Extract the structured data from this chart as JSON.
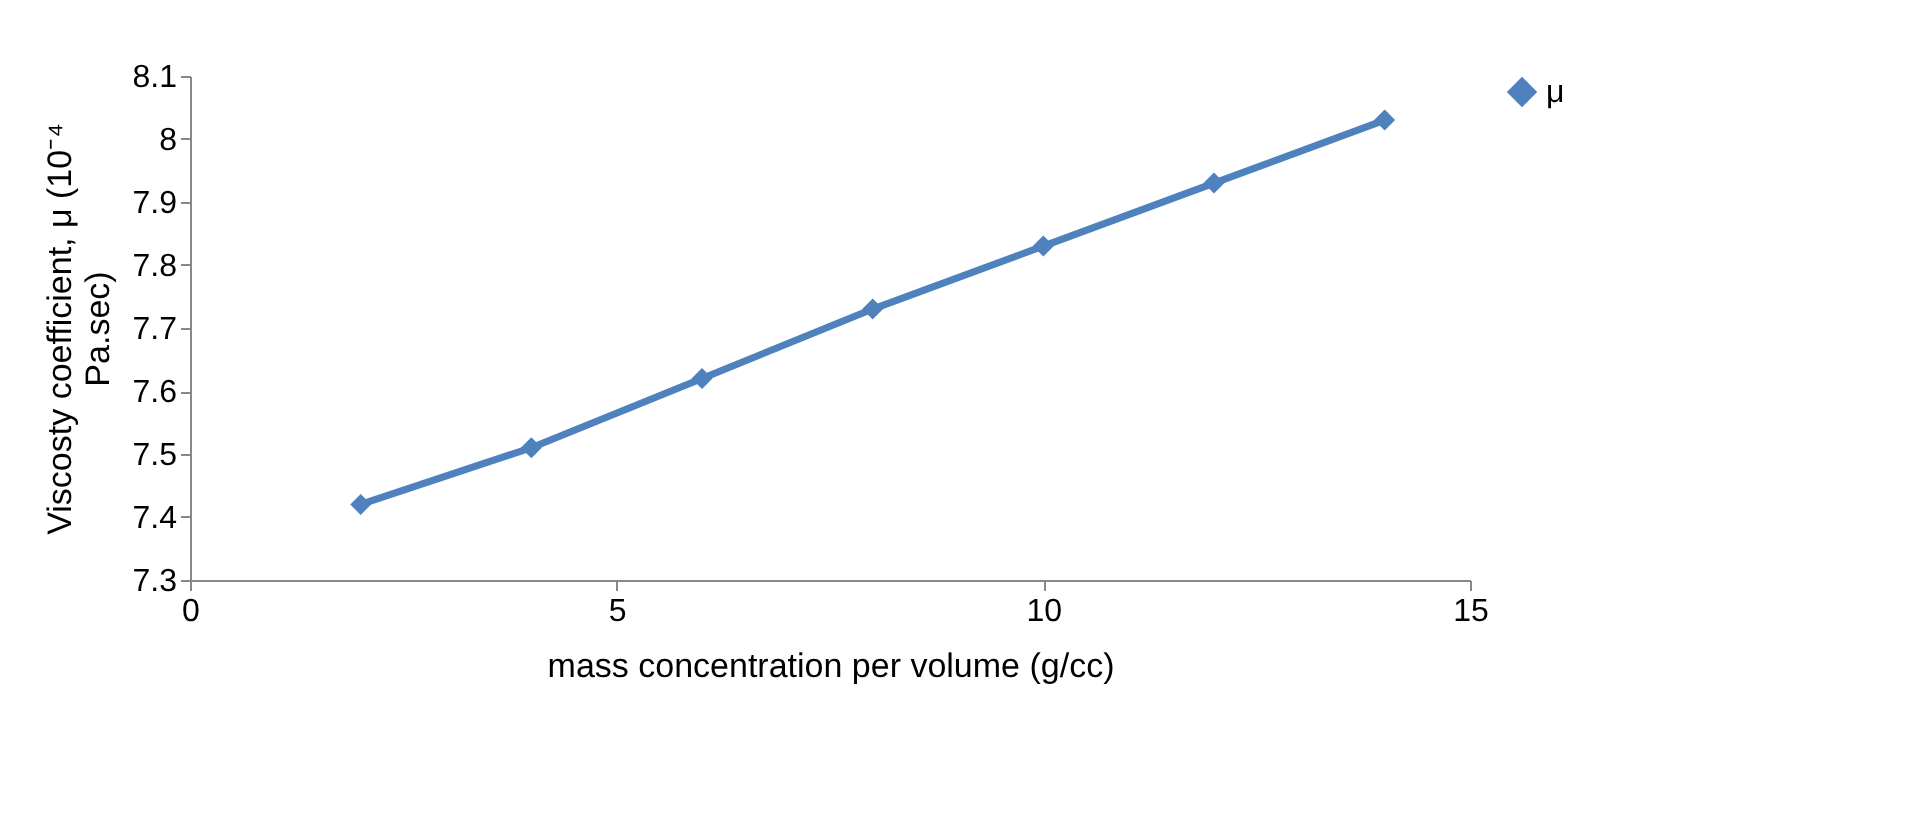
{
  "chart_data": {
    "type": "line",
    "xlabel": "mass concentration per volume (g/cc)",
    "ylabel": "Viscosty coefficient, μ (10⁻⁴ Pa.sec)",
    "x": [
      2,
      4,
      6,
      8,
      10,
      12,
      14
    ],
    "series": [
      {
        "name": "μ",
        "color": "#4f81bd",
        "values": [
          7.42,
          7.51,
          7.62,
          7.73,
          7.83,
          7.93,
          8.03
        ]
      }
    ],
    "xlim": [
      0,
      15
    ],
    "xticks": [
      0,
      5,
      10,
      15
    ],
    "ylim": [
      7.3,
      8.1
    ],
    "yticks": [
      7.3,
      7.4,
      7.5,
      7.6,
      7.7,
      7.8,
      7.9,
      {
        "value": 8,
        "label": "8"
      },
      8.1
    ],
    "grid": false,
    "legend": "right",
    "marker": "diamond",
    "line_style": "solid"
  }
}
